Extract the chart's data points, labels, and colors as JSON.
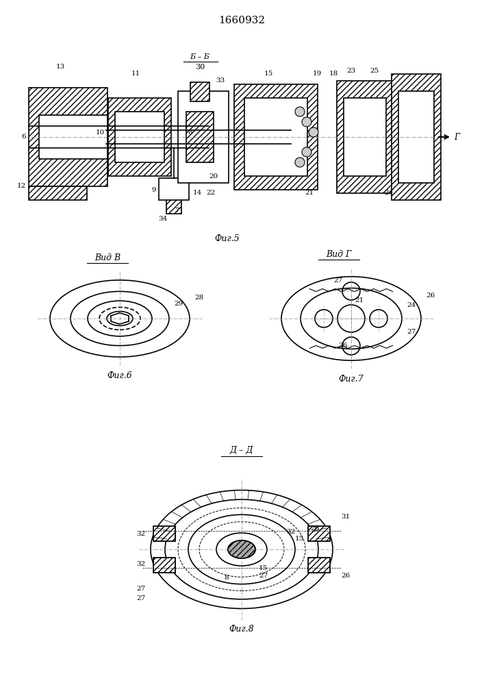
{
  "title": "1660932",
  "bg_color": "#ffffff",
  "line_color": "#000000",
  "fig5_label": "Фиг.5",
  "fig6_label": "Фиг.6",
  "fig7_label": "Фиг.7",
  "fig8_label": "Фиг.8",
  "view_b_label": "Вид В",
  "view_g_label": "Вид Г",
  "section_dd_label": "Д – Д",
  "section_bb_label": "Б – Б",
  "section_bb_num": "30"
}
